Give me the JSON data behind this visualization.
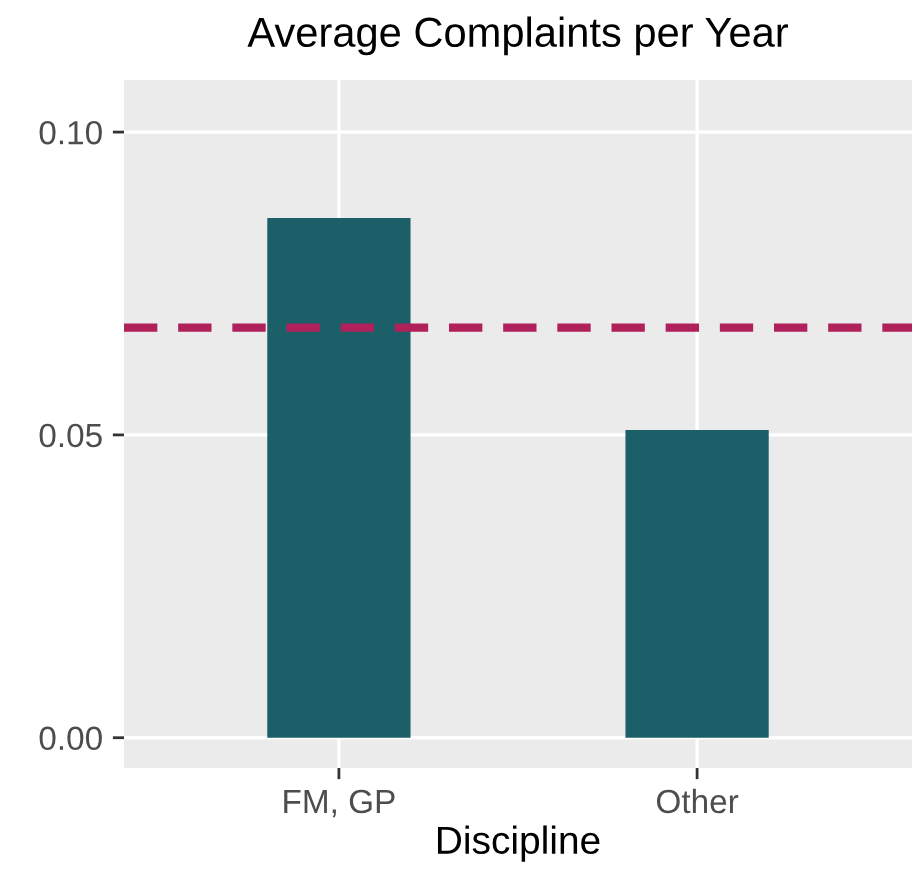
{
  "chart_data": {
    "type": "bar",
    "title": "Average Complaints per Year",
    "xlabel": "Discipline",
    "categories": [
      "FM, GP",
      "Other"
    ],
    "values": [
      0.0858,
      0.0508
    ],
    "color": "#1b6069",
    "ylim": [
      -0.005,
      0.1086
    ],
    "yticks": [
      {
        "value": 0.0,
        "label": "0.00"
      },
      {
        "value": 0.05,
        "label": "0.05"
      },
      {
        "value": 0.1,
        "label": "0.10"
      }
    ],
    "ref_lines": [
      {
        "axis": "y",
        "value": 0.0677,
        "color": "#b0205a",
        "line_style": "dashed"
      }
    ],
    "grid": true
  }
}
